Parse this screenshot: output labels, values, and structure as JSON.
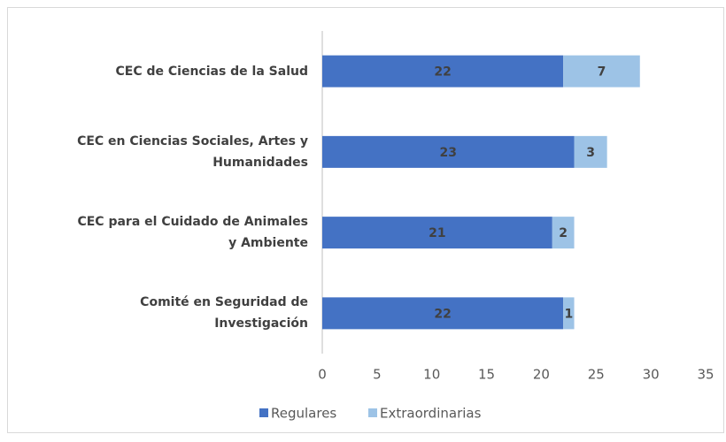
{
  "chart_data": {
    "type": "stacked_barh",
    "categories": [
      "CEC de Ciencias de la Salud",
      "CEC en Ciencias Sociales, Artes y Humanidades",
      "CEC para el Cuidado de Animales y Ambiente",
      "Comité en Seguridad de Investigación"
    ],
    "series": [
      {
        "name": "Regulares",
        "color": "#4472c4",
        "values": [
          22,
          23,
          21,
          22
        ]
      },
      {
        "name": "Extraordinarias",
        "color": "#9dc3e6",
        "values": [
          7,
          3,
          2,
          1
        ]
      }
    ],
    "xlim": [
      0,
      35
    ],
    "xticks": [
      0,
      5,
      10,
      15,
      20,
      25,
      30,
      35
    ],
    "legend": "bottom"
  }
}
